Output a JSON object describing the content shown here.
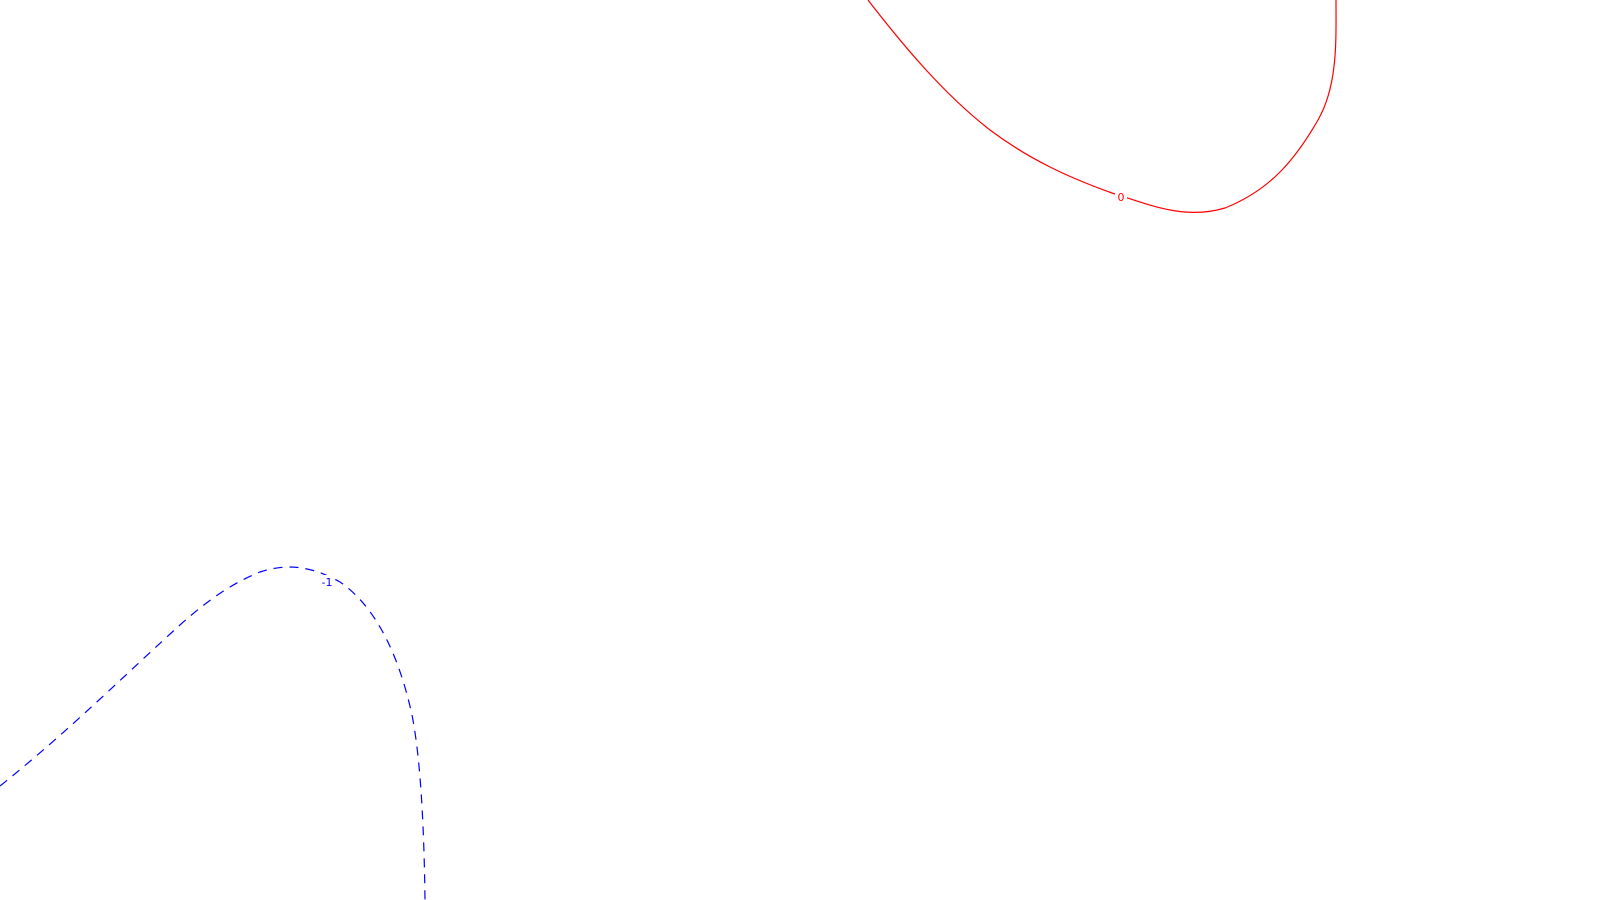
{
  "chart_data": {
    "type": "line",
    "chart_kind": "contour",
    "title": "",
    "xlabel": "",
    "ylabel": "",
    "grid": false,
    "legend": "none",
    "series": [
      {
        "level_label": "0",
        "color": "#ff0000",
        "line_style": "solid"
      },
      {
        "level_label": "-1",
        "color": "#0000ff",
        "line_style": "dashed"
      }
    ]
  }
}
